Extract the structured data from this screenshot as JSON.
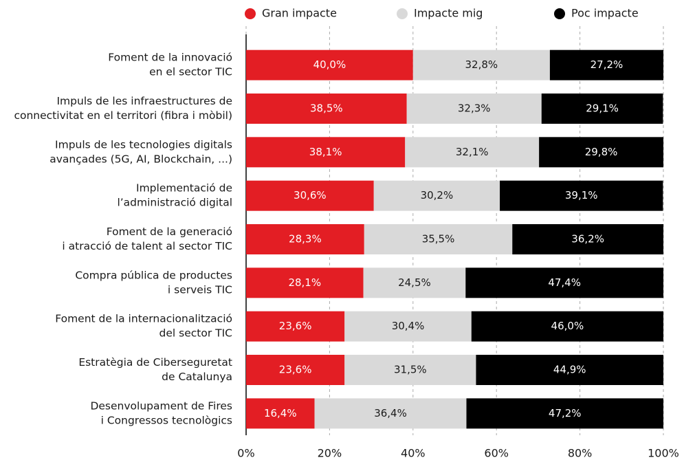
{
  "chart_data": {
    "type": "stacked-barh",
    "categories": [
      [
        "Foment de la innovació",
        "en el sector TIC"
      ],
      [
        "Impuls de les infraestructures de",
        "connectivitat en el territori (fibra i mòbil)"
      ],
      [
        "Impuls de les tecnologies digitals",
        "avançades (5G, AI, Blockchain, ...)"
      ],
      [
        "Implementació de",
        "l’administració digital"
      ],
      [
        "Foment de la generació",
        "i atracció de talent al sector TIC"
      ],
      [
        "Compra pública de productes",
        "i serveis TIC"
      ],
      [
        "Foment de la internacionalització",
        "del sector TIC"
      ],
      [
        "Estratègia de Ciberseguretat",
        "de Catalunya"
      ],
      [
        "Desenvolupament de Fires",
        "i Congressos tecnològics"
      ]
    ],
    "series": [
      {
        "name": "Gran impacte",
        "color": "#e31e24",
        "label_color": "#ffffff",
        "values": [
          40.0,
          38.5,
          38.1,
          30.6,
          28.3,
          28.1,
          23.6,
          23.6,
          16.4
        ],
        "value_labels": [
          "40,0%",
          "38,5%",
          "38,1%",
          "30,6%",
          "28,3%",
          "28,1%",
          "23,6%",
          "23,6%",
          "16,4%"
        ]
      },
      {
        "name": "Impacte mig",
        "color": "#d9d9d9",
        "label_color": "#1a1a1a",
        "values": [
          32.8,
          32.3,
          32.1,
          30.2,
          35.5,
          24.5,
          30.4,
          31.5,
          36.4
        ],
        "value_labels": [
          "32,8%",
          "32,3%",
          "32,1%",
          "30,2%",
          "35,5%",
          "24,5%",
          "30,4%",
          "31,5%",
          "36,4%"
        ]
      },
      {
        "name": "Poc impacte",
        "color": "#000000",
        "label_color": "#ffffff",
        "values": [
          27.2,
          29.1,
          29.8,
          39.1,
          36.2,
          47.4,
          46.0,
          44.9,
          47.2
        ],
        "value_labels": [
          "27,2%",
          "29,1%",
          "29,8%",
          "39,1%",
          "36,2%",
          "47,4%",
          "46,0%",
          "44,9%",
          "47,2%"
        ]
      }
    ],
    "xlim": [
      0,
      100
    ],
    "xticks": [
      {
        "value": 0,
        "label": "0%"
      },
      {
        "value": 20,
        "label": "20%"
      },
      {
        "value": 40,
        "label": "40%"
      },
      {
        "value": 60,
        "label": "60%"
      },
      {
        "value": 80,
        "label": "80%"
      },
      {
        "value": 100,
        "label": "100%"
      }
    ],
    "grid": true,
    "legend": "top"
  }
}
